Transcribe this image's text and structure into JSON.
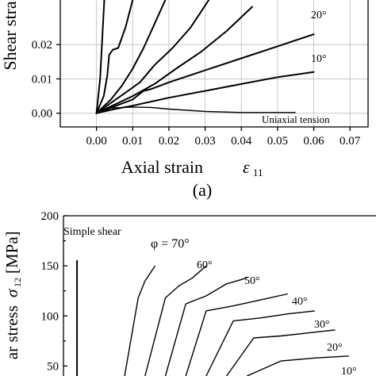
{
  "chart_data": [
    {
      "type": "line",
      "panel_label": "(a)",
      "xlabel": "Axial strain",
      "xlabel_symbol": "ε",
      "xlabel_subscript": "11",
      "ylabel": "Shear stra",
      "xlim": [
        -0.01,
        0.075
      ],
      "ylim": [
        -0.004,
        0.033
      ],
      "xticks": [
        "0.00",
        "0.01",
        "0.02",
        "0.03",
        "0.04",
        "0.05",
        "0.06",
        "0.07"
      ],
      "yticks": [
        "0.00",
        "0.01",
        "0.02"
      ],
      "grid": true,
      "annotations": [
        "20°",
        "10°",
        "Uniaxial tension"
      ],
      "series": [
        {
          "id": "steep-a",
          "x": [
            0,
            0.001,
            0.0015,
            0.002,
            0.0025
          ],
          "y": [
            0,
            0.01,
            0.02,
            0.03,
            0.04
          ]
        },
        {
          "id": "steep-b",
          "x": [
            0,
            0.002,
            0.003,
            0.0035,
            0.0045,
            0.006,
            0.008,
            0.01
          ],
          "y": [
            0,
            0.005,
            0.011,
            0.017,
            0.0185,
            0.019,
            0.025,
            0.033
          ]
        },
        {
          "id": "steep-c",
          "x": [
            0,
            0.004,
            0.007,
            0.01,
            0.013,
            0.016,
            0.019
          ],
          "y": [
            0,
            0.004,
            0.008,
            0.013,
            0.019,
            0.026,
            0.033
          ]
        },
        {
          "id": "mid-a",
          "x": [
            0,
            0.004,
            0.008,
            0.012,
            0.016,
            0.021,
            0.026,
            0.031
          ],
          "y": [
            0,
            0.003,
            0.006,
            0.009,
            0.014,
            0.019,
            0.025,
            0.033
          ]
        },
        {
          "id": "mid-b",
          "x": [
            0,
            0.005,
            0.01,
            0.016,
            0.022,
            0.029,
            0.036,
            0.043
          ],
          "y": [
            0,
            0.0025,
            0.005,
            0.0085,
            0.013,
            0.018,
            0.024,
            0.031
          ]
        },
        {
          "id": "20deg",
          "x": [
            0,
            0.005,
            0.01,
            0.013,
            0.015,
            0.02,
            0.03,
            0.04,
            0.05,
            0.06
          ],
          "y": [
            0,
            0.002,
            0.004,
            0.0065,
            0.007,
            0.009,
            0.0125,
            0.016,
            0.0195,
            0.023
          ]
        },
        {
          "id": "10deg",
          "x": [
            0,
            0.005,
            0.01,
            0.02,
            0.03,
            0.04,
            0.05,
            0.06
          ],
          "y": [
            0,
            0.0012,
            0.0022,
            0.0045,
            0.0065,
            0.0085,
            0.0105,
            0.012
          ]
        },
        {
          "id": "uniaxial",
          "x": [
            0,
            0.004,
            0.01,
            0.015,
            0.02,
            0.03,
            0.04,
            0.055
          ],
          "y": [
            0,
            0.0015,
            0.0018,
            0.0017,
            0.0012,
            0.0005,
            0.0002,
            0.0002
          ]
        }
      ]
    },
    {
      "type": "line",
      "panel_label": "",
      "ylabel": "ar stress",
      "ylabel_symbol": "σ",
      "ylabel_subscript": "12",
      "ylabel_unit": "[MPa]",
      "ylim": [
        40,
        200
      ],
      "yticks": [
        "50",
        "100",
        "150",
        "200"
      ],
      "annotations": [
        "Simple shear",
        "φ = 70°",
        "60°",
        "50°",
        "40°",
        "30°",
        "20°",
        "10°"
      ],
      "series": [
        {
          "id": "simple-shear",
          "x": [
            0,
            0
          ],
          "y": [
            40,
            155
          ]
        },
        {
          "id": "70deg",
          "x": [
            0.7,
            0.9,
            1.0,
            1.15
          ],
          "y": [
            40,
            118,
            135,
            150
          ]
        },
        {
          "id": "60deg",
          "x": [
            1.0,
            1.3,
            1.5,
            1.7,
            1.9
          ],
          "y": [
            40,
            118,
            130,
            138,
            150
          ]
        },
        {
          "id": "50deg",
          "x": [
            1.3,
            1.6,
            1.9,
            2.2,
            2.5
          ],
          "y": [
            40,
            112,
            120,
            132,
            138
          ]
        },
        {
          "id": "40deg",
          "x": [
            1.6,
            1.9,
            2.3,
            2.7,
            3.1
          ],
          "y": [
            40,
            105,
            110,
            116,
            122
          ]
        },
        {
          "id": "30deg",
          "x": [
            1.9,
            2.3,
            2.7,
            3.1,
            3.5
          ],
          "y": [
            40,
            95,
            98,
            102,
            105
          ]
        },
        {
          "id": "20deg",
          "x": [
            2.2,
            2.6,
            3.0,
            3.4,
            3.8
          ],
          "y": [
            40,
            78,
            80,
            83,
            86
          ]
        },
        {
          "id": "10deg",
          "x": [
            2.5,
            3.0,
            3.5,
            4.0
          ],
          "y": [
            40,
            55,
            58,
            60
          ]
        }
      ]
    }
  ]
}
